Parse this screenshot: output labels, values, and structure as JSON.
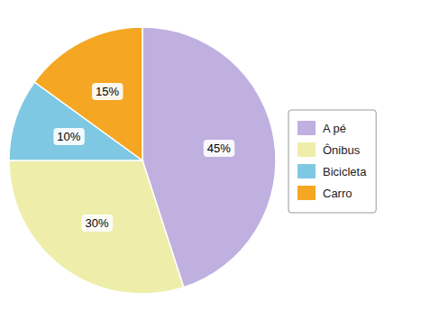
{
  "chart_data": {
    "type": "pie",
    "categories": [
      "A pé",
      "Ônibus",
      "Bicicleta",
      "Carro"
    ],
    "values": [
      45,
      30,
      10,
      15
    ],
    "value_labels": [
      "45%",
      "30%",
      "10%",
      "15%"
    ],
    "colors": [
      "#c0b0e0",
      "#eeeeaa",
      "#7ec8e3",
      "#f5a623"
    ],
    "data_labels": true,
    "legend": "right"
  }
}
